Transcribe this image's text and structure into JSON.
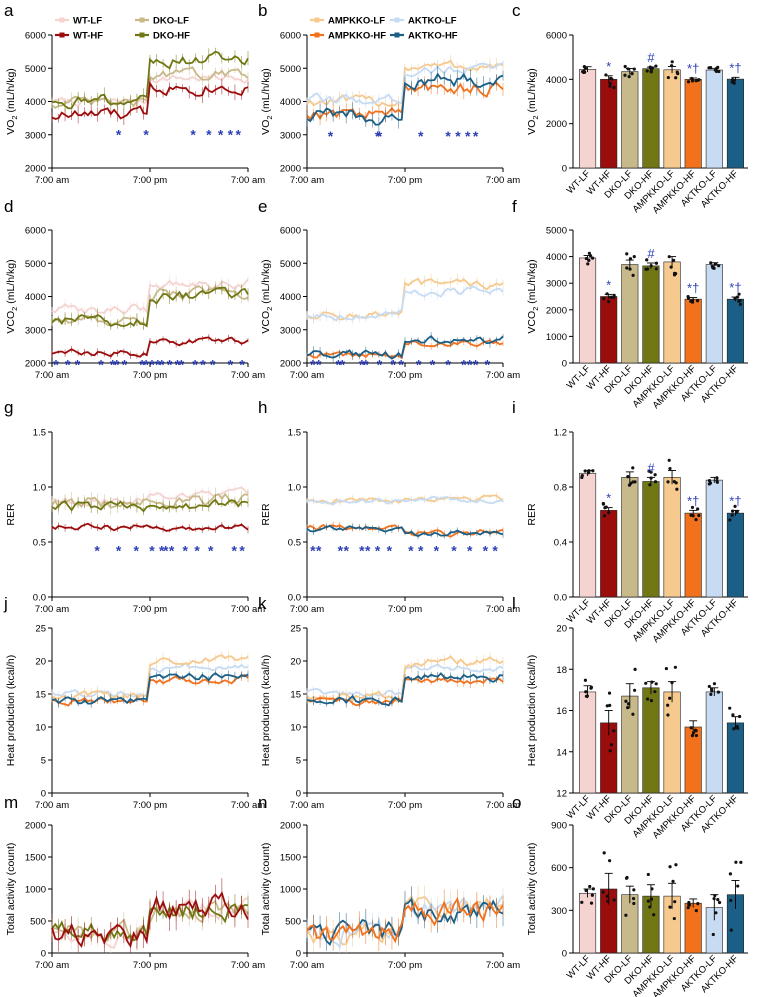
{
  "figure": {
    "colors": {
      "WT-LF": "#f4d3d0",
      "WT-HF": "#9b0c0c",
      "DKO-LF": "#c8b98a",
      "DKO-HF": "#717715",
      "AMPKKO-LF": "#f6c98f",
      "AMPKKO-HF": "#f2711c",
      "AKTKO-LF": "#c7dcf3",
      "AKTKO-HF": "#1b5e86",
      "star": "#2d3fb4",
      "axis": "#000000"
    },
    "legend_a": [
      "WT-LF",
      "DKO-LF",
      "WT-HF",
      "DKO-HF"
    ],
    "legend_b": [
      "AMPKKO-LF",
      "AKTKO-LF",
      "AMPKKO-HF",
      "AKTKO-HF"
    ]
  },
  "chart_data": [
    {
      "panel": "a",
      "type": "line",
      "ylabel": "VO2 (mL/h/kg)",
      "x_ticks": [
        "7:00 am",
        "7:00 pm",
        "7:00 am"
      ],
      "ylim": [
        2000,
        6000
      ],
      "yticks": [
        2000,
        3000,
        4000,
        5000,
        6000
      ],
      "series": [
        {
          "name": "WT-LF",
          "levels": [
            4000,
            4700
          ],
          "noise": 110
        },
        {
          "name": "DKO-LF",
          "levels": [
            3950,
            4800
          ],
          "noise": 140
        },
        {
          "name": "WT-HF",
          "levels": [
            3600,
            4450
          ],
          "noise": 180
        },
        {
          "name": "DKO-HF",
          "levels": [
            4050,
            5250
          ],
          "noise": 160
        }
      ],
      "star_x": [
        0.34,
        0.48,
        0.72,
        0.8,
        0.86,
        0.91,
        0.95
      ],
      "star_y": 3100
    },
    {
      "panel": "b",
      "type": "line",
      "ylabel": "VO2 (mL/h/kg)",
      "x_ticks": [
        "7:00 am",
        "7:00 pm",
        "7:00 am"
      ],
      "ylim": [
        2000,
        6000
      ],
      "yticks": [
        2000,
        3000,
        4000,
        5000,
        6000
      ],
      "series": [
        {
          "name": "AMPKKO-LF",
          "levels": [
            4000,
            5050
          ],
          "noise": 140
        },
        {
          "name": "AKTKO-LF",
          "levels": [
            4050,
            4950
          ],
          "noise": 130
        },
        {
          "name": "AMPKKO-HF",
          "levels": [
            3650,
            4400
          ],
          "noise": 180
        },
        {
          "name": "AKTKO-HF",
          "levels": [
            3550,
            4650
          ],
          "noise": 200
        }
      ],
      "star_x": [
        0.12,
        0.36,
        0.37,
        0.58,
        0.72,
        0.77,
        0.82,
        0.86
      ],
      "star_y": 3050
    },
    {
      "panel": "c",
      "type": "bar",
      "ylabel": "VO2 (mL/h/kg)",
      "categories": [
        "WT-LF",
        "WT-HF",
        "DKO-LF",
        "DKO-HF",
        "AMPKKO-LF",
        "AMPKKO-HF",
        "AKTKO-LF",
        "AKTKO-HF"
      ],
      "values": [
        4450,
        4000,
        4350,
        4480,
        4430,
        4000,
        4420,
        4010
      ],
      "errors": [
        120,
        160,
        140,
        70,
        150,
        60,
        60,
        80
      ],
      "ylim": [
        0,
        6000
      ],
      "yticks": [
        0,
        2000,
        4000,
        6000
      ],
      "marks": [
        "",
        "*",
        "",
        "#",
        "",
        "*†",
        "",
        "*†"
      ]
    },
    {
      "panel": "d",
      "type": "line",
      "ylabel": "VCO2 (mL/h/kg)",
      "x_ticks": [
        "7:00 am",
        "7:00 pm",
        "7:00 am"
      ],
      "ylim": [
        2000,
        6000
      ],
      "yticks": [
        2000,
        3000,
        4000,
        5000,
        6000
      ],
      "series": [
        {
          "name": "WT-LF",
          "levels": [
            3600,
            4400
          ],
          "noise": 140
        },
        {
          "name": "DKO-LF",
          "levels": [
            3300,
            4100
          ],
          "noise": 140
        },
        {
          "name": "WT-HF",
          "levels": [
            2300,
            2650
          ],
          "noise": 90
        },
        {
          "name": "DKO-HF",
          "levels": [
            3250,
            4000
          ],
          "noise": 150
        }
      ],
      "star_x": [
        0.02,
        0.08,
        0.13,
        0.25,
        0.31,
        0.33,
        0.37,
        0.46,
        0.48,
        0.51,
        0.54,
        0.56,
        0.6,
        0.64,
        0.66,
        0.73,
        0.77,
        0.82,
        0.91,
        0.97
      ],
      "star_y": 2050
    },
    {
      "panel": "e",
      "type": "line",
      "ylabel": "VCO2 (mL/h/kg)",
      "x_ticks": [
        "7:00 am",
        "7:00 pm",
        "7:00 am"
      ],
      "ylim": [
        2000,
        6000
      ],
      "yticks": [
        2000,
        3000,
        4000,
        5000,
        6000
      ],
      "series": [
        {
          "name": "AMPKKO-LF",
          "levels": [
            3450,
            4350
          ],
          "noise": 120
        },
        {
          "name": "AKTKO-LF",
          "levels": [
            3450,
            4150
          ],
          "noise": 110
        },
        {
          "name": "AMPKKO-HF",
          "levels": [
            2250,
            2600
          ],
          "noise": 90
        },
        {
          "name": "AKTKO-HF",
          "levels": [
            2250,
            2700
          ],
          "noise": 110
        }
      ],
      "star_x": [
        0.03,
        0.06,
        0.16,
        0.18,
        0.28,
        0.3,
        0.37,
        0.44,
        0.48,
        0.57,
        0.64,
        0.72,
        0.8,
        0.83,
        0.86,
        0.92
      ],
      "star_y": 2050
    },
    {
      "panel": "f",
      "type": "bar",
      "ylabel": "VCO2 (mL/h/kg)",
      "categories": [
        "WT-LF",
        "WT-HF",
        "DKO-LF",
        "DKO-HF",
        "AMPKKO-LF",
        "AMPKKO-HF",
        "AKTKO-LF",
        "AKTKO-HF"
      ],
      "values": [
        3950,
        2500,
        3700,
        3650,
        3800,
        2400,
        3700,
        2400
      ],
      "errors": [
        90,
        80,
        170,
        110,
        200,
        60,
        70,
        80
      ],
      "ylim": [
        0,
        5000
      ],
      "yticks": [
        0,
        1000,
        2000,
        3000,
        4000,
        5000
      ],
      "marks": [
        "",
        "*",
        "",
        "#",
        "",
        "*†",
        "",
        "*†"
      ]
    },
    {
      "panel": "g",
      "type": "line",
      "ylabel": "RER",
      "x_ticks": [
        "7:00 am",
        "7:00 pm",
        "7:00 am"
      ],
      "ylim": [
        0.0,
        1.5
      ],
      "yticks": [
        "0.0",
        "0.5",
        "1.0",
        "1.5"
      ],
      "series": [
        {
          "name": "WT-LF",
          "levels": [
            0.88,
            0.93
          ],
          "noise": 0.03
        },
        {
          "name": "DKO-LF",
          "levels": [
            0.84,
            0.88
          ],
          "noise": 0.05
        },
        {
          "name": "WT-HF",
          "levels": [
            0.64,
            0.62
          ],
          "noise": 0.025
        },
        {
          "name": "DKO-HF",
          "levels": [
            0.82,
            0.84
          ],
          "noise": 0.04
        }
      ],
      "star_x": [
        0.23,
        0.34,
        0.43,
        0.51,
        0.56,
        0.58,
        0.61,
        0.68,
        0.74,
        0.81,
        0.93,
        0.97
      ],
      "star_y": 0.45
    },
    {
      "panel": "h",
      "type": "line",
      "ylabel": "RER",
      "x_ticks": [
        "7:00 am",
        "7:00 pm",
        "7:00 am"
      ],
      "ylim": [
        0.0,
        1.5
      ],
      "yticks": [
        "0.0",
        "0.5",
        "1.0",
        "1.5"
      ],
      "series": [
        {
          "name": "AMPKKO-LF",
          "levels": [
            0.88,
            0.9
          ],
          "noise": 0.025
        },
        {
          "name": "AKTKO-LF",
          "levels": [
            0.87,
            0.88
          ],
          "noise": 0.02
        },
        {
          "name": "AMPKKO-HF",
          "levels": [
            0.63,
            0.58
          ],
          "noise": 0.025
        },
        {
          "name": "AKTKO-HF",
          "levels": [
            0.62,
            0.58
          ],
          "noise": 0.025
        }
      ],
      "star_x": [
        0.03,
        0.06,
        0.17,
        0.2,
        0.28,
        0.31,
        0.36,
        0.42,
        0.53,
        0.58,
        0.66,
        0.75,
        0.83,
        0.91,
        0.96
      ],
      "star_y": 0.45
    },
    {
      "panel": "i",
      "type": "bar",
      "ylabel": "RER",
      "categories": [
        "WT-LF",
        "WT-HF",
        "DKO-LF",
        "DKO-HF",
        "AMPKKO-LF",
        "AMPKKO-HF",
        "AKTKO-LF",
        "AKTKO-HF"
      ],
      "values": [
        0.9,
        0.63,
        0.87,
        0.84,
        0.87,
        0.61,
        0.85,
        0.61
      ],
      "errors": [
        0.02,
        0.02,
        0.04,
        0.03,
        0.05,
        0.02,
        0.02,
        0.02
      ],
      "ylim": [
        0.0,
        1.2
      ],
      "yticks": [
        "0.0",
        "0.4",
        "0.8",
        "1.2"
      ],
      "marks": [
        "",
        "*",
        "",
        "#",
        "",
        "*†",
        "",
        "*†"
      ]
    },
    {
      "panel": "j",
      "type": "line",
      "ylabel": "Heat production (kcal/h)",
      "x_ticks": [
        "7:00 am",
        "7:00 pm",
        "7:00 am"
      ],
      "ylim": [
        0,
        25
      ],
      "yticks": [
        0,
        5,
        10,
        15,
        20,
        25
      ],
      "series": [
        {
          "name": "AKTKO-LF",
          "levels": [
            15.2,
            19.0
          ],
          "noise": 0.5
        },
        {
          "name": "AMPKKO-LF",
          "levels": [
            14.6,
            19.8
          ],
          "noise": 0.6
        },
        {
          "name": "AMPKKO-HF",
          "levels": [
            14.0,
            17.0
          ],
          "noise": 0.5
        },
        {
          "name": "AKTKO-HF",
          "levels": [
            14.0,
            17.6
          ],
          "noise": 0.6
        }
      ],
      "star_x": [],
      "star_y": 0
    },
    {
      "panel": "k",
      "type": "line",
      "ylabel": "Heat production (kcal/h)",
      "x_ticks": [
        "7:00 am",
        "7:00 pm",
        "7:00 am"
      ],
      "ylim": [
        0,
        25
      ],
      "yticks": [
        0,
        5,
        10,
        15,
        20,
        25
      ],
      "series": [
        {
          "name": "AKTKO-LF",
          "levels": [
            15.2,
            19.0
          ],
          "noise": 0.5
        },
        {
          "name": "AMPKKO-LF",
          "levels": [
            14.6,
            19.8
          ],
          "noise": 0.6
        },
        {
          "name": "AMPKKO-HF",
          "levels": [
            14.0,
            17.0
          ],
          "noise": 0.5
        },
        {
          "name": "AKTKO-HF",
          "levels": [
            14.0,
            17.6
          ],
          "noise": 0.6
        }
      ],
      "star_x": [],
      "star_y": 0
    },
    {
      "panel": "l",
      "type": "bar",
      "ylabel": "Heat production (kcal/h)",
      "categories": [
        "WT-LF",
        "WT-HF",
        "DKO-LF",
        "DKO-HF",
        "AMPKKO-LF",
        "AMPKKO-HF",
        "AKTKO-LF",
        "AKTKO-HF"
      ],
      "values": [
        16.9,
        15.4,
        16.7,
        17.1,
        16.9,
        15.2,
        16.9,
        15.4
      ],
      "errors": [
        0.3,
        0.6,
        0.6,
        0.3,
        0.5,
        0.3,
        0.2,
        0.3
      ],
      "ylim": [
        12,
        20
      ],
      "yticks": [
        12,
        14,
        16,
        18,
        20
      ],
      "marks": [
        "",
        "",
        "",
        "",
        "",
        "",
        "",
        ""
      ]
    },
    {
      "panel": "m",
      "type": "line",
      "ylabel": "Total activity (count)",
      "x_ticks": [
        "7:00 am",
        "7:00 pm",
        "7:00 am"
      ],
      "ylim": [
        0,
        2000
      ],
      "yticks": [
        0,
        500,
        1000,
        1500,
        2000
      ],
      "series": [
        {
          "name": "WT-LF",
          "levels": [
            300,
            700
          ],
          "noise": 120
        },
        {
          "name": "DKO-LF",
          "levels": [
            320,
            650
          ],
          "noise": 130
        },
        {
          "name": "DKO-HF",
          "levels": [
            330,
            650
          ],
          "noise": 140
        },
        {
          "name": "WT-HF",
          "levels": [
            330,
            720
          ],
          "noise": 170
        }
      ],
      "star_x": [],
      "star_y": 0
    },
    {
      "panel": "n",
      "type": "line",
      "ylabel": "Total activity (count)",
      "x_ticks": [
        "7:00 am",
        "7:00 pm",
        "7:00 am"
      ],
      "ylim": [
        0,
        2000
      ],
      "yticks": [
        0,
        500,
        1000,
        1500,
        2000
      ],
      "series": [
        {
          "name": "AMPKKO-LF",
          "levels": [
            300,
            750
          ],
          "noise": 140
        },
        {
          "name": "AKTKO-LF",
          "levels": [
            320,
            700
          ],
          "noise": 140
        },
        {
          "name": "AKTKO-HF",
          "levels": [
            300,
            650
          ],
          "noise": 150
        },
        {
          "name": "AMPKKO-HF",
          "levels": [
            280,
            620
          ],
          "noise": 160
        }
      ],
      "star_x": [],
      "star_y": 0
    },
    {
      "panel": "o",
      "type": "bar",
      "ylabel": "Total activity (count)",
      "categories": [
        "WT-LF",
        "WT-HF",
        "DKO-LF",
        "DKO-HF",
        "AMPKKO-LF",
        "AMPKKO-HF",
        "AKTKO-LF",
        "AKTKO-HF"
      ],
      "values": [
        420,
        450,
        410,
        400,
        400,
        350,
        320,
        410
      ],
      "errors": [
        30,
        110,
        60,
        80,
        90,
        30,
        90,
        100
      ],
      "ylim": [
        0,
        900
      ],
      "yticks": [
        0,
        300,
        600,
        900
      ],
      "marks": [
        "",
        "",
        "",
        "",
        "",
        "",
        "",
        ""
      ]
    }
  ]
}
